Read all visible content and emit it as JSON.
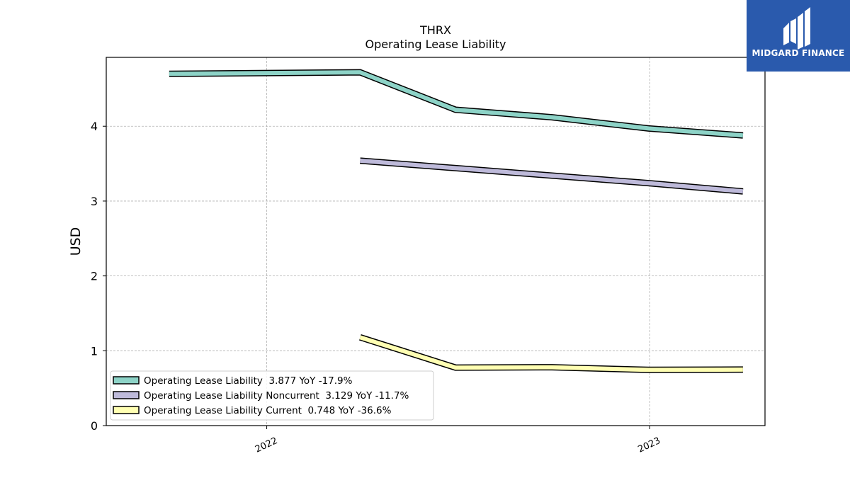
{
  "logo": {
    "text": "MIDGARD FINANCE",
    "bg_color": "#2a5aad"
  },
  "chart_data": {
    "type": "line",
    "title": "THRX",
    "subtitle": "Operating Lease Liability",
    "ylabel": "USD",
    "xlabel": "",
    "ylim": [
      0,
      4.92
    ],
    "xlim": [
      "2021-08-01",
      "2023-04-21"
    ],
    "x_ticks": [
      {
        "label": "2022",
        "date": "2022-01-01"
      },
      {
        "label": "2023",
        "date": "2023-01-01"
      }
    ],
    "y_ticks": [
      0,
      1,
      2,
      3,
      4
    ],
    "grid": true,
    "legend_position": "lower-left",
    "series": [
      {
        "name": "Operating Lease Liability",
        "legend_label": "Operating Lease Liability  3.877 YoY -17.9%",
        "color": "#8dd3c7",
        "x": [
          "2021-09-30",
          "2022-03-31",
          "2022-06-30",
          "2022-09-30",
          "2022-12-31",
          "2023-03-31"
        ],
        "values": [
          4.7,
          4.72,
          4.22,
          4.12,
          3.97,
          3.877
        ]
      },
      {
        "name": "Operating Lease Liability Noncurrent",
        "legend_label": "Operating Lease Liability Noncurrent  3.129 YoY -11.7%",
        "color": "#bebada",
        "x": [
          "2022-03-31",
          "2022-06-30",
          "2022-09-30",
          "2022-12-31",
          "2023-03-31"
        ],
        "values": [
          3.54,
          3.44,
          3.34,
          3.24,
          3.129
        ]
      },
      {
        "name": "Operating Lease Liability Current",
        "legend_label": "Operating Lease Liability Current  0.748 YoY -36.6%",
        "color": "#ffffb3",
        "x": [
          "2022-03-31",
          "2022-06-30",
          "2022-09-30",
          "2022-12-31",
          "2023-03-31"
        ],
        "values": [
          1.18,
          0.775,
          0.78,
          0.745,
          0.748
        ]
      }
    ]
  }
}
